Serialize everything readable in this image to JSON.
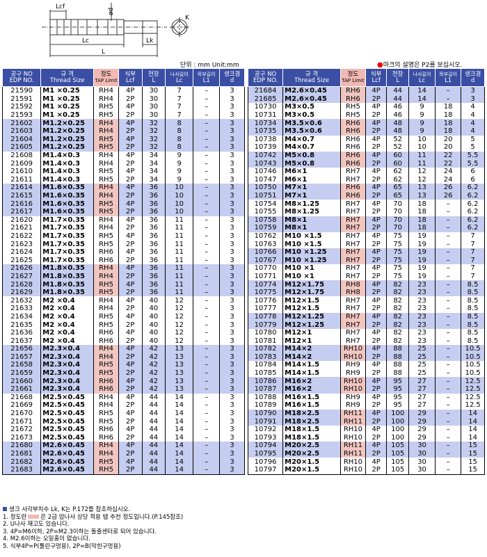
{
  "diagram": {
    "lcf": "Lcf",
    "d": "ød",
    "lc": "Lc",
    "lk": "Lk",
    "l": "L",
    "k": "K"
  },
  "unit": "단위 : mm Unit:mm",
  "legend_note": "마크의 설명은 P2를 보십시오.",
  "headers": {
    "edp_ko": "공구 NO",
    "edp_en": "EDP NO.",
    "thread_ko": "규 격",
    "thread_en": "Thread Size",
    "limit_ko": "정도",
    "limit_en": "TAP Limit",
    "type_ko": "식부",
    "type_en": "Lcf",
    "length_ko": "전장",
    "length_en": "L",
    "lc_ko": "나사길이",
    "lc_en": "Lc",
    "l1_ko": "목부길이",
    "l1_en": "L1",
    "shank_ko": "생크경",
    "shank_en": "d"
  },
  "colors": {
    "header": "#3a4ea3",
    "limit_header": "#f1b9b3",
    "row_highlight": "#c5cdf0",
    "limit_highlight": "#f1c6c1"
  },
  "left_rows": [
    [
      "21590",
      "M1 ×0.25",
      "RH4",
      "4P",
      "30",
      "7",
      "–",
      "3",
      0
    ],
    [
      "21591",
      "M1 ×0.25",
      "RH4",
      "2P",
      "30",
      "7",
      "–",
      "3",
      0
    ],
    [
      "21592",
      "M1 ×0.25",
      "RH5",
      "4P",
      "30",
      "7",
      "–",
      "3",
      0
    ],
    [
      "21593",
      "M1 ×0.25",
      "RH5",
      "2P",
      "30",
      "7",
      "–",
      "3",
      0
    ],
    [
      "21602",
      "M1.2×0.25",
      "RH4",
      "4P",
      "32",
      "8",
      "–",
      "3",
      1
    ],
    [
      "21603",
      "M1.2×0.25",
      "RH4",
      "2P",
      "32",
      "8",
      "–",
      "3",
      1
    ],
    [
      "21604",
      "M1.2×0.25",
      "RH5",
      "4P",
      "32",
      "8",
      "–",
      "3",
      1
    ],
    [
      "21605",
      "M1.2×0.25",
      "RH5",
      "2P",
      "32",
      "8",
      "–",
      "3",
      1
    ],
    [
      "21608",
      "M1.4×0.3",
      "RH4",
      "4P",
      "34",
      "9",
      "–",
      "3",
      0
    ],
    [
      "21609",
      "M1.4×0.3",
      "RH4",
      "2P",
      "34",
      "9",
      "–",
      "3",
      0
    ],
    [
      "21610",
      "M1.4×0.3",
      "RH5",
      "4P",
      "34",
      "9",
      "–",
      "3",
      0
    ],
    [
      "21611",
      "M1.4×0.3",
      "RH5",
      "2P",
      "34",
      "9",
      "–",
      "3",
      0
    ],
    [
      "21614",
      "M1.6×0.35",
      "RH4",
      "4P",
      "36",
      "10",
      "–",
      "3",
      1
    ],
    [
      "21615",
      "M1.6×0.35",
      "RH4",
      "2P",
      "36",
      "10",
      "–",
      "3",
      1
    ],
    [
      "21616",
      "M1.6×0.35",
      "RH5",
      "4P",
      "36",
      "10",
      "–",
      "3",
      1
    ],
    [
      "21617",
      "M1.6×0.35",
      "RH5",
      "2P",
      "36",
      "10",
      "–",
      "3",
      1
    ],
    [
      "21620",
      "M1.7×0.35",
      "RH4",
      "4P",
      "36",
      "11",
      "–",
      "3",
      0
    ],
    [
      "21621",
      "M1.7×0.35",
      "RH4",
      "2P",
      "36",
      "11",
      "–",
      "3",
      0
    ],
    [
      "21622",
      "M1.7×0.35",
      "RH5",
      "4P",
      "36",
      "11",
      "–",
      "3",
      0
    ],
    [
      "21623",
      "M1.7×0.35",
      "RH5",
      "2P",
      "36",
      "11",
      "–",
      "3",
      0
    ],
    [
      "21624",
      "M1.7×0.35",
      "RH6",
      "4P",
      "36",
      "11",
      "–",
      "3",
      0
    ],
    [
      "21625",
      "M1.7×0.35",
      "RH6",
      "2P",
      "36",
      "11",
      "–",
      "3",
      0
    ],
    [
      "21626",
      "M1.8×0.35",
      "RH4",
      "4P",
      "36",
      "11",
      "–",
      "3",
      1
    ],
    [
      "21627",
      "M1.8×0.35",
      "RH4",
      "2P",
      "36",
      "11",
      "–",
      "3",
      1
    ],
    [
      "21628",
      "M1.8×0.35",
      "RH5",
      "4P",
      "36",
      "11",
      "–",
      "3",
      1
    ],
    [
      "21629",
      "M1.8×0.35",
      "RH5",
      "2P",
      "36",
      "11",
      "–",
      "3",
      1
    ],
    [
      "21632",
      "M2 ×0.4",
      "RH4",
      "4P",
      "40",
      "12",
      "–",
      "3",
      0
    ],
    [
      "21633",
      "M2 ×0.4",
      "RH4",
      "2P",
      "40",
      "12",
      "–",
      "3",
      0
    ],
    [
      "21634",
      "M2 ×0.4",
      "RH5",
      "4P",
      "40",
      "12",
      "–",
      "3",
      0
    ],
    [
      "21635",
      "M2 ×0.4",
      "RH5",
      "2P",
      "40",
      "12",
      "–",
      "3",
      0
    ],
    [
      "21636",
      "M2 ×0.4",
      "RH6",
      "4P",
      "40",
      "12",
      "–",
      "3",
      0
    ],
    [
      "21637",
      "M2 ×0.4",
      "RH6",
      "2P",
      "40",
      "12",
      "–",
      "3",
      0
    ],
    [
      "21656",
      "M2.3×0.4",
      "RH4",
      "4P",
      "42",
      "13",
      "–",
      "3",
      1
    ],
    [
      "21657",
      "M2.3×0.4",
      "RH4",
      "2P",
      "42",
      "13",
      "–",
      "3",
      1
    ],
    [
      "21658",
      "M2.3×0.4",
      "RH5",
      "4P",
      "42",
      "13",
      "–",
      "3",
      1
    ],
    [
      "21659",
      "M2.3×0.4",
      "RH5",
      "2P",
      "42",
      "13",
      "–",
      "3",
      1
    ],
    [
      "21660",
      "M2.3×0.4",
      "RH6",
      "4P",
      "42",
      "13",
      "–",
      "3",
      1
    ],
    [
      "21661",
      "M2.3×0.4",
      "RH6",
      "2P",
      "42",
      "13",
      "–",
      "3",
      1
    ],
    [
      "21668",
      "M2.5×0.45",
      "RH4",
      "4P",
      "44",
      "14",
      "–",
      "3",
      0
    ],
    [
      "21669",
      "M2.5×0.45",
      "RH4",
      "2P",
      "44",
      "14",
      "–",
      "3",
      0
    ],
    [
      "21670",
      "M2.5×0.45",
      "RH5",
      "4P",
      "44",
      "14",
      "–",
      "3",
      0
    ],
    [
      "21671",
      "M2.5×0.45",
      "RH5",
      "2P",
      "44",
      "14",
      "–",
      "3",
      0
    ],
    [
      "21672",
      "M2.5×0.45",
      "RH6",
      "4P",
      "44",
      "14",
      "–",
      "3",
      0
    ],
    [
      "21673",
      "M2.5×0.45",
      "RH6",
      "2P",
      "44",
      "14",
      "–",
      "3",
      0
    ],
    [
      "21680",
      "M2.6×0.45",
      "RH4",
      "4P",
      "44",
      "14",
      "–",
      "3",
      1
    ],
    [
      "21681",
      "M2.6×0.45",
      "RH4",
      "2P",
      "44",
      "14",
      "–",
      "3",
      1
    ],
    [
      "21682",
      "M2.6×0.45",
      "RH5",
      "4P",
      "44",
      "14",
      "–",
      "3",
      1
    ],
    [
      "21683",
      "M2.6×0.45",
      "RH5",
      "2P",
      "44",
      "14",
      "–",
      "3",
      1
    ]
  ],
  "right_rows": [
    [
      "21684",
      "M2.6×0.45",
      "RH6",
      "4P",
      "44",
      "14",
      "–",
      "3",
      1
    ],
    [
      "21685",
      "M2.6×0.45",
      "RH6",
      "2P",
      "44",
      "14",
      "–",
      "3",
      1
    ],
    [
      "10730",
      "M3×0.5",
      "RH5",
      "4P",
      "46",
      "9",
      "18",
      "4",
      0
    ],
    [
      "10731",
      "M3×0.5",
      "RH5",
      "2P",
      "46",
      "9",
      "18",
      "4",
      0
    ],
    [
      "10734",
      "M3.5×0.6",
      "RH6",
      "4P",
      "48",
      "9",
      "18",
      "4",
      1
    ],
    [
      "10735",
      "M3.5×0.6",
      "RH6",
      "2P",
      "48",
      "9",
      "18",
      "4",
      1
    ],
    [
      "10738",
      "M4×0.7",
      "RH6",
      "4P",
      "52",
      "10",
      "20",
      "5",
      0
    ],
    [
      "10739",
      "M4×0.7",
      "RH6",
      "2P",
      "52",
      "10",
      "20",
      "5",
      0
    ],
    [
      "10742",
      "M5×0.8",
      "RH6",
      "4P",
      "60",
      "11",
      "22",
      "5.5",
      1
    ],
    [
      "10743",
      "M5×0.8",
      "RH6",
      "2P",
      "60",
      "11",
      "22",
      "5.5",
      1
    ],
    [
      "10746",
      "M6×1",
      "RH7",
      "4P",
      "62",
      "12",
      "24",
      "6",
      0
    ],
    [
      "10747",
      "M6×1",
      "RH7",
      "2P",
      "62",
      "12",
      "24",
      "6",
      0
    ],
    [
      "10750",
      "M7×1",
      "RH6",
      "4P",
      "65",
      "13",
      "26",
      "6.2",
      1
    ],
    [
      "10751",
      "M7×1",
      "RH6",
      "2P",
      "65",
      "13",
      "26",
      "6.2",
      1
    ],
    [
      "10754",
      "M8×1.25",
      "RH7",
      "4P",
      "70",
      "18",
      "–",
      "6.2",
      0
    ],
    [
      "10755",
      "M8×1.25",
      "RH7",
      "2P",
      "70",
      "18",
      "–",
      "6.2",
      0
    ],
    [
      "10758",
      "M8×1",
      "RH7",
      "4P",
      "70",
      "18",
      "–",
      "6.2",
      1
    ],
    [
      "10759",
      "M8×1",
      "RH7",
      "2P",
      "70",
      "18",
      "–",
      "6.2",
      1
    ],
    [
      "10762",
      "M10 ×1.5",
      "RH7",
      "4P",
      "75",
      "19",
      "–",
      "7",
      0
    ],
    [
      "10763",
      "M10 ×1.5",
      "RH7",
      "2P",
      "75",
      "19",
      "–",
      "7",
      0
    ],
    [
      "10766",
      "M10 ×1.25",
      "RH7",
      "4P",
      "75",
      "19",
      "–",
      "7",
      1
    ],
    [
      "10767",
      "M10 ×1.25",
      "RH7",
      "2P",
      "75",
      "19",
      "–",
      "7",
      1
    ],
    [
      "10770",
      "M10 ×1",
      "RH7",
      "4P",
      "75",
      "19",
      "–",
      "7",
      0
    ],
    [
      "10771",
      "M10 ×1",
      "RH7",
      "2P",
      "75",
      "19",
      "–",
      "7",
      0
    ],
    [
      "10774",
      "M12×1.75",
      "RH8",
      "4P",
      "82",
      "23",
      "–",
      "8.5",
      1
    ],
    [
      "10775",
      "M12×1.75",
      "RH8",
      "2P",
      "82",
      "23",
      "–",
      "8.5",
      1
    ],
    [
      "10776",
      "M12×1.5",
      "RH7",
      "4P",
      "82",
      "23",
      "–",
      "8.5",
      0
    ],
    [
      "10777",
      "M12×1.5",
      "RH7",
      "2P",
      "82",
      "23",
      "–",
      "8.5",
      0
    ],
    [
      "10778",
      "M12×1.25",
      "RH7",
      "4P",
      "82",
      "23",
      "–",
      "8.5",
      1
    ],
    [
      "10779",
      "M12×1.25",
      "RH7",
      "2P",
      "82",
      "23",
      "–",
      "8.5",
      1
    ],
    [
      "10780",
      "M12×1",
      "RH7",
      "4P",
      "82",
      "23",
      "–",
      "8.5",
      0
    ],
    [
      "10781",
      "M12×1",
      "RH7",
      "2P",
      "82",
      "23",
      "–",
      "8.5",
      0
    ],
    [
      "10782",
      "M14×2",
      "RH10",
      "4P",
      "88",
      "25",
      "–",
      "10.5",
      1
    ],
    [
      "10783",
      "M14×2",
      "RH10",
      "2P",
      "88",
      "25",
      "–",
      "10.5",
      1
    ],
    [
      "10784",
      "M14×1.5",
      "RH9",
      "4P",
      "88",
      "25",
      "–",
      "10.5",
      0
    ],
    [
      "10785",
      "M14×1.5",
      "RH9",
      "2P",
      "88",
      "25",
      "–",
      "10.5",
      0
    ],
    [
      "10786",
      "M16×2",
      "RH10",
      "4P",
      "95",
      "27",
      "–",
      "12.5",
      1
    ],
    [
      "10787",
      "M16×2",
      "RH10",
      "2P",
      "95",
      "27",
      "–",
      "12.5",
      1
    ],
    [
      "10788",
      "M16×1.5",
      "RH9",
      "4P",
      "95",
      "27",
      "–",
      "12.5",
      0
    ],
    [
      "10789",
      "M16×1.5",
      "RH9",
      "2P",
      "95",
      "27",
      "–",
      "12.5",
      0
    ],
    [
      "10790",
      "M18×2.5",
      "RH11",
      "4P",
      "100",
      "29",
      "–",
      "14",
      1
    ],
    [
      "10791",
      "M18×2.5",
      "RH11",
      "2P",
      "100",
      "29",
      "–",
      "14",
      1
    ],
    [
      "10792",
      "M18×1.5",
      "RH10",
      "4P",
      "100",
      "29",
      "–",
      "14",
      0
    ],
    [
      "10793",
      "M18×1.5",
      "RH10",
      "2P",
      "100",
      "29",
      "–",
      "14",
      0
    ],
    [
      "10794",
      "M20×2.5",
      "RH11",
      "4P",
      "105",
      "30",
      "–",
      "15",
      1
    ],
    [
      "10795",
      "M20×2.5",
      "RH11",
      "2P",
      "105",
      "30",
      "–",
      "15",
      1
    ],
    [
      "10796",
      "M20×1.5",
      "RH10",
      "4P",
      "105",
      "30",
      "–",
      "15",
      0
    ],
    [
      "10797",
      "M20×1.5",
      "RH10",
      "2P",
      "105",
      "30",
      "–",
      "15",
      0
    ]
  ],
  "notes": {
    "shank": "생크 사각부치수 Lk, K는 P.172를 참조하십시오.",
    "n1a": "1. 정도란",
    "n1b": "은 2급 암나사 상당 적용 탭 추천 정도입니다.(P.145참조)",
    "n2": "2. U나사 재고도 있습니다.",
    "n3": "3. 4P=M6이하, 2P=M2.3이하는 돌출센터로 되어 있습니다.",
    "n4": "4. M2.6이하는 오일홈이 없습니다.",
    "n5": "5. 식부4P=P(툴린구멍용), 2P=B(막힌구멍용)"
  }
}
